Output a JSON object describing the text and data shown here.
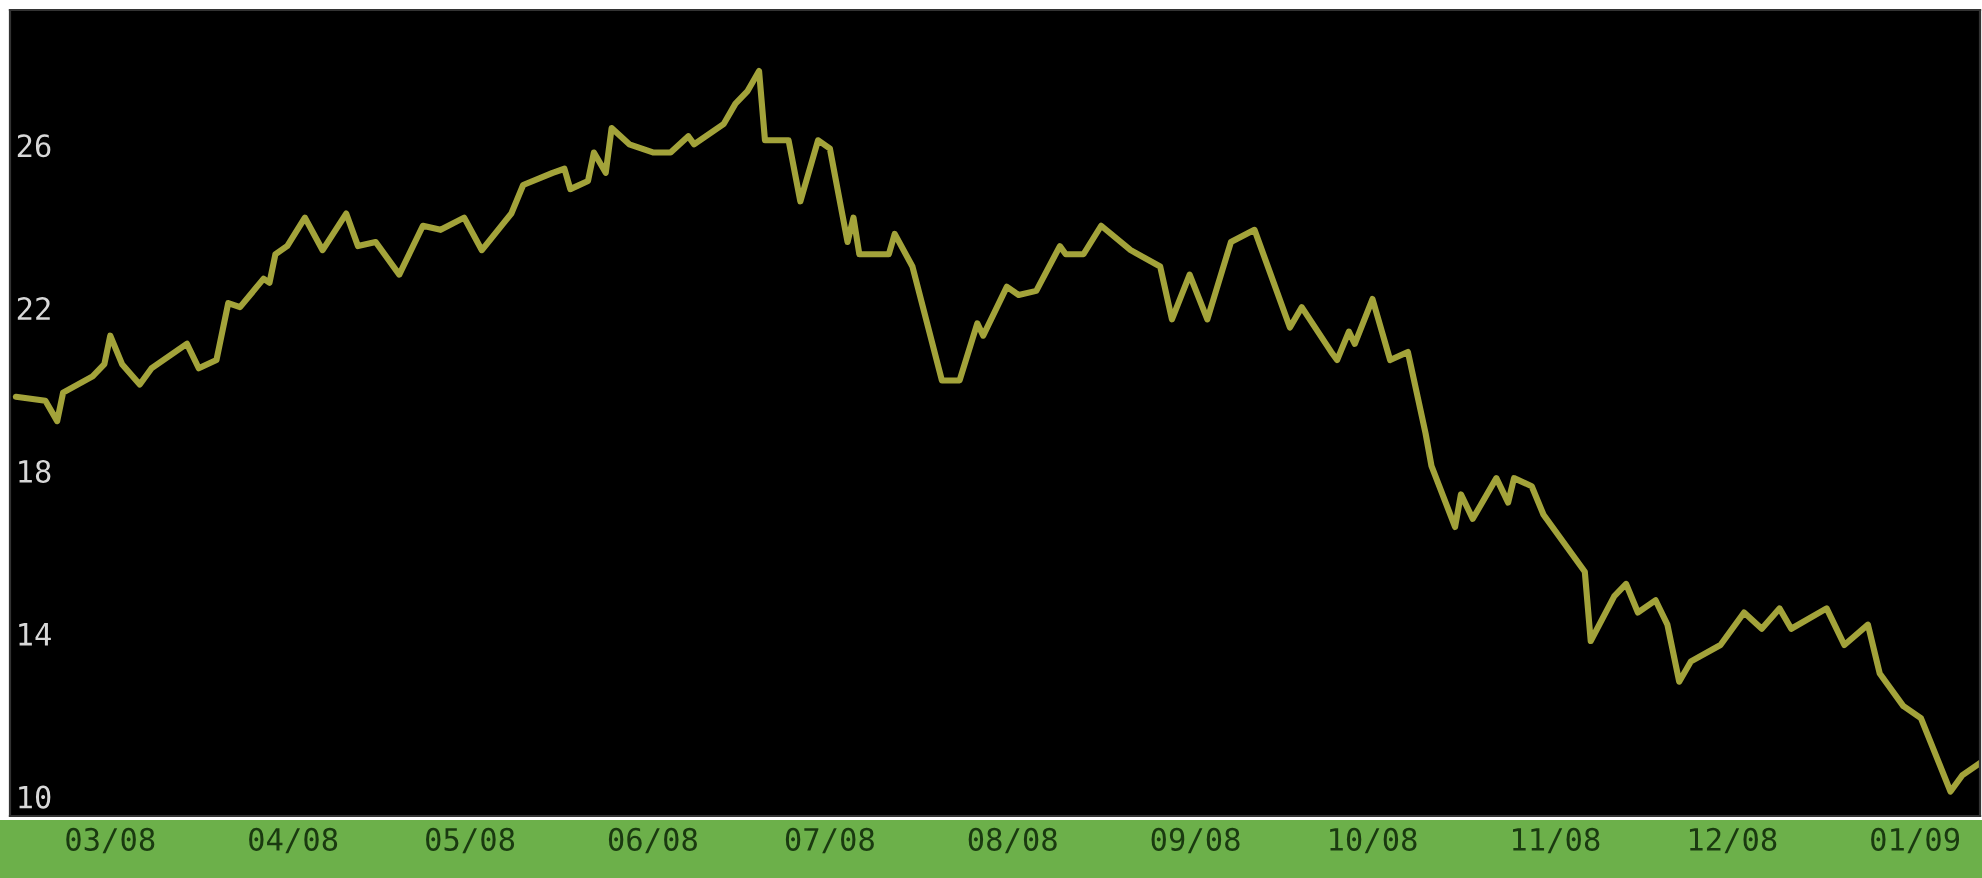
{
  "chart_data": {
    "type": "line",
    "x": [
      "2008-02-14",
      "2008-02-19",
      "2008-02-21",
      "2008-02-22",
      "2008-02-27",
      "2008-02-29",
      "2008-03-01",
      "2008-03-03",
      "2008-03-06",
      "2008-03-08",
      "2008-03-14",
      "2008-03-16",
      "2008-03-19",
      "2008-03-21",
      "2008-03-23",
      "2008-03-27",
      "2008-03-28",
      "2008-03-29",
      "2008-03-31",
      "2008-04-03",
      "2008-04-06",
      "2008-04-10",
      "2008-04-12",
      "2008-04-15",
      "2008-04-19",
      "2008-04-23",
      "2008-04-26",
      "2008-04-30",
      "2008-05-03",
      "2008-05-08",
      "2008-05-10",
      "2008-05-15",
      "2008-05-17",
      "2008-05-18",
      "2008-05-21",
      "2008-05-22",
      "2008-05-24",
      "2008-05-25",
      "2008-05-28",
      "2008-06-01",
      "2008-06-04",
      "2008-06-07",
      "2008-06-08",
      "2008-06-13",
      "2008-06-15",
      "2008-06-17",
      "2008-06-19",
      "2008-06-20",
      "2008-06-24",
      "2008-06-26",
      "2008-06-29",
      "2008-07-01",
      "2008-07-04",
      "2008-07-05",
      "2008-07-06",
      "2008-07-11",
      "2008-07-12",
      "2008-07-15",
      "2008-07-20",
      "2008-07-23",
      "2008-07-26",
      "2008-07-27",
      "2008-07-31",
      "2008-08-02",
      "2008-08-05",
      "2008-08-09",
      "2008-08-10",
      "2008-08-13",
      "2008-08-16",
      "2008-08-21",
      "2008-08-26",
      "2008-08-28",
      "2008-08-31",
      "2008-09-03",
      "2008-09-07",
      "2008-09-11",
      "2008-09-12",
      "2008-09-17",
      "2008-09-19",
      "2008-09-24",
      "2008-09-25",
      "2008-09-27",
      "2008-09-28",
      "2008-10-01",
      "2008-10-04",
      "2008-10-07",
      "2008-10-10",
      "2008-10-11",
      "2008-10-15",
      "2008-10-16",
      "2008-10-18",
      "2008-10-22",
      "2008-10-24",
      "2008-10-25",
      "2008-10-28",
      "2008-10-30",
      "2008-11-06",
      "2008-11-07",
      "2008-11-11",
      "2008-11-13",
      "2008-11-15",
      "2008-11-18",
      "2008-11-20",
      "2008-11-22",
      "2008-11-24",
      "2008-11-29",
      "2008-12-03",
      "2008-12-06",
      "2008-12-09",
      "2008-12-11",
      "2008-12-17",
      "2008-12-20",
      "2008-12-24",
      "2008-12-26",
      "2008-12-30",
      "2009-01-02",
      "2009-01-07",
      "2009-01-09",
      "2009-01-12"
    ],
    "series": [
      {
        "color": "#a3a33a",
        "values": [
          19.9,
          19.8,
          19.3,
          20.0,
          20.4,
          20.7,
          21.4,
          20.7,
          20.2,
          20.6,
          21.2,
          20.6,
          20.8,
          22.2,
          22.1,
          22.8,
          22.7,
          23.4,
          23.6,
          24.3,
          23.5,
          24.4,
          23.6,
          23.7,
          22.9,
          24.1,
          24.0,
          24.3,
          23.5,
          24.4,
          25.1,
          25.4,
          25.5,
          25.0,
          25.2,
          25.9,
          25.4,
          26.5,
          26.1,
          25.9,
          25.9,
          26.3,
          26.1,
          26.6,
          27.1,
          27.4,
          27.9,
          26.2,
          26.2,
          24.7,
          26.2,
          26.0,
          23.7,
          24.3,
          23.4,
          23.4,
          23.9,
          23.1,
          20.3,
          20.3,
          21.7,
          21.4,
          22.6,
          22.4,
          22.5,
          23.6,
          23.4,
          23.4,
          24.1,
          23.5,
          23.1,
          21.8,
          22.9,
          21.8,
          23.7,
          24.0,
          23.6,
          21.6,
          22.1,
          21.0,
          20.8,
          21.5,
          21.2,
          22.3,
          20.8,
          21.0,
          19.0,
          18.2,
          16.7,
          17.5,
          16.9,
          17.9,
          17.3,
          17.9,
          17.7,
          17.0,
          15.6,
          13.9,
          15.0,
          15.3,
          14.6,
          14.9,
          14.3,
          12.9,
          13.4,
          13.8,
          14.6,
          14.2,
          14.7,
          14.2,
          14.7,
          13.8,
          14.3,
          13.1,
          12.3,
          12.0,
          10.2,
          10.6,
          10.9
        ]
      }
    ],
    "xlim": [
      "2008-02-13",
      "2009-01-12"
    ],
    "xticks": [
      {
        "value": "2008-03-01",
        "label": "03/08"
      },
      {
        "value": "2008-04-01",
        "label": "04/08"
      },
      {
        "value": "2008-05-01",
        "label": "05/08"
      },
      {
        "value": "2008-06-01",
        "label": "06/08"
      },
      {
        "value": "2008-07-01",
        "label": "07/08"
      },
      {
        "value": "2008-08-01",
        "label": "08/08"
      },
      {
        "value": "2008-09-01",
        "label": "09/08"
      },
      {
        "value": "2008-10-01",
        "label": "10/08"
      },
      {
        "value": "2008-11-01",
        "label": "11/08"
      },
      {
        "value": "2008-12-01",
        "label": "12/08"
      },
      {
        "value": "2009-01-01",
        "label": "01/09"
      }
    ],
    "ylim": [
      9.6,
      29.4
    ],
    "yticks": [
      10,
      14,
      18,
      22,
      26
    ],
    "grid": false,
    "marker": "none",
    "line_style": "solid"
  }
}
